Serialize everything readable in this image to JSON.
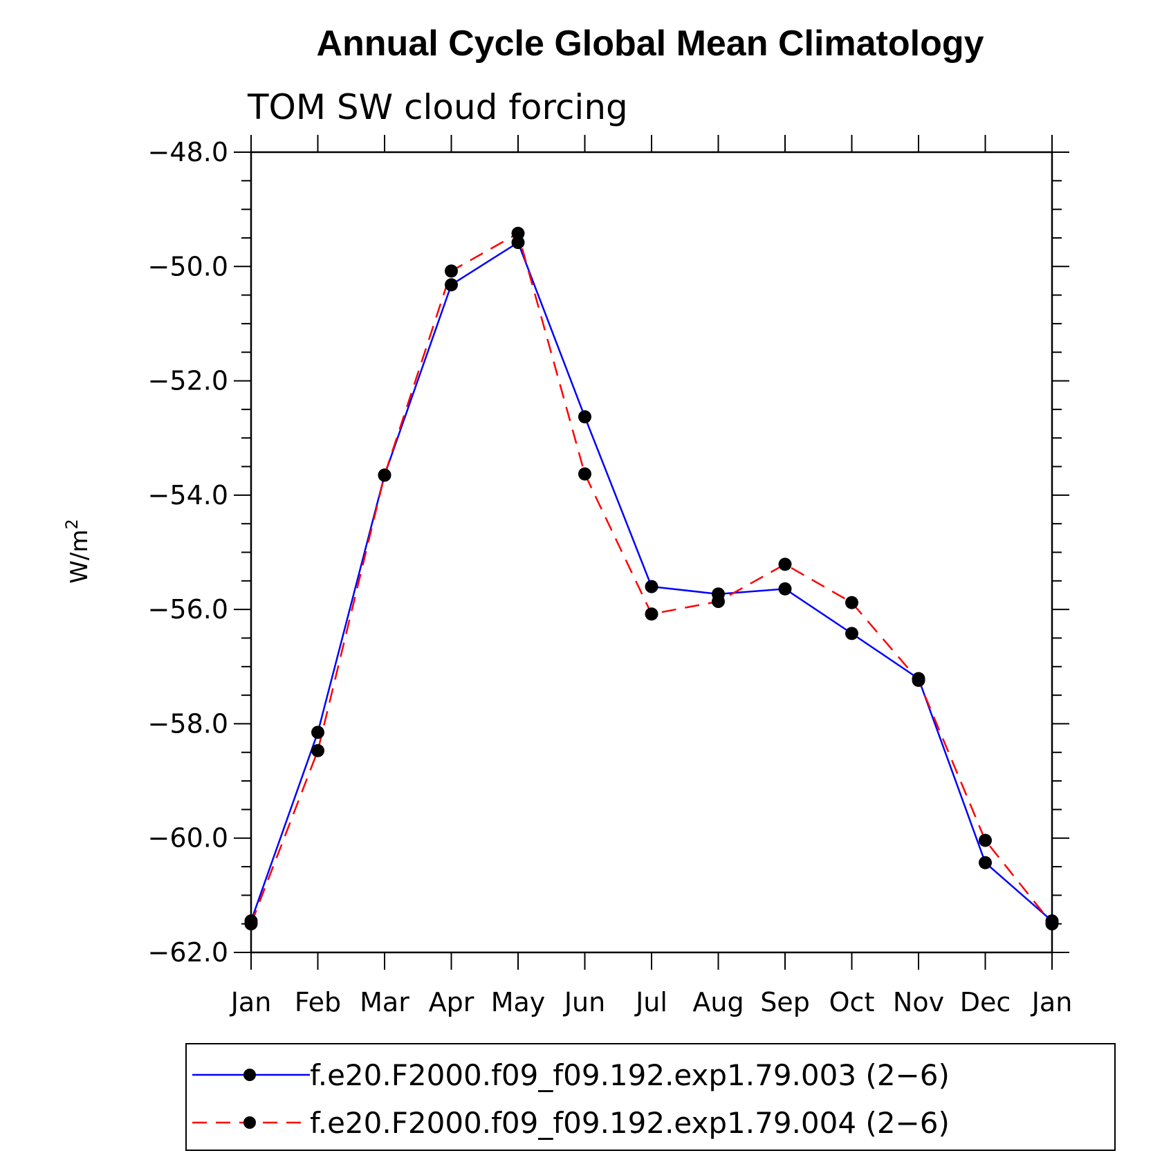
{
  "chart_data": {
    "type": "line",
    "title": "Annual Cycle Global Mean Climatology",
    "subtitle": "TOM SW cloud forcing",
    "ylabel": "W/m",
    "ylabel_superscript": "2",
    "ylim": [
      -62.0,
      -48.0
    ],
    "ytick_labels": [
      "−48.0",
      "−50.0",
      "−52.0",
      "−54.0",
      "−56.0",
      "−58.0",
      "−60.0",
      "−62.0"
    ],
    "yticks": [
      -48,
      -50,
      -52,
      -54,
      -56,
      -58,
      -60,
      -62
    ],
    "categories": [
      "Jan",
      "Feb",
      "Mar",
      "Apr",
      "May",
      "Jun",
      "Jul",
      "Aug",
      "Sep",
      "Oct",
      "Nov",
      "Dec",
      "Jan"
    ],
    "series": [
      {
        "name": "f.e20.F2000.f09_f09.192.exp1.79.003 (2−6)",
        "color": "#0000ff",
        "dash": "solid",
        "values": [
          -61.45,
          -58.15,
          -53.65,
          -50.32,
          -49.58,
          -52.63,
          -55.6,
          -55.73,
          -55.64,
          -56.42,
          -57.21,
          -60.43,
          -61.45
        ]
      },
      {
        "name": "f.e20.F2000.f09_f09.192.exp1.79.004 (2−6)",
        "color": "#ff0000",
        "dash": "dashed",
        "values": [
          -61.5,
          -58.47,
          -53.65,
          -50.08,
          -49.42,
          -53.63,
          -56.08,
          -55.86,
          -55.21,
          -55.88,
          -57.24,
          -60.04,
          -61.5
        ]
      }
    ],
    "legend_position": "bottom"
  }
}
